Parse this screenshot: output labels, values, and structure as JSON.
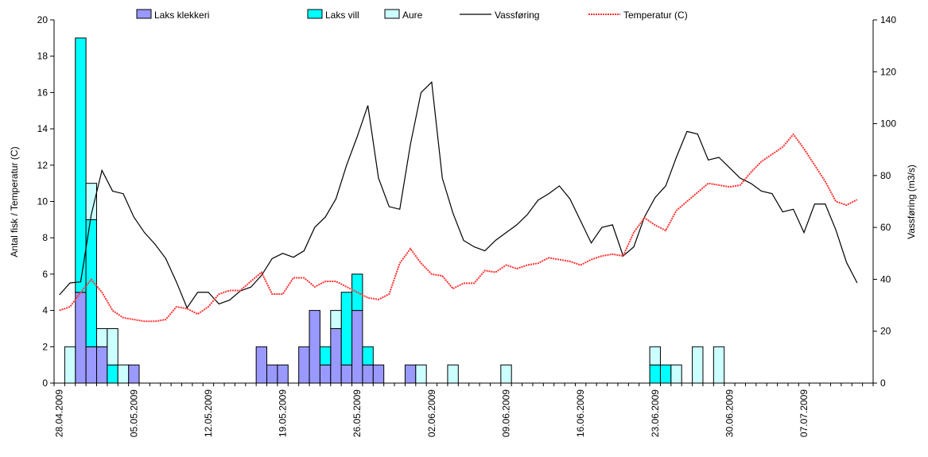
{
  "chart_data": {
    "type": "bar",
    "y_label": "Antal fisk / Temperatur (C)",
    "y2_label": "Vassføring (m3/s)",
    "categories": [
      "28.04.2009",
      null,
      null,
      null,
      null,
      null,
      null,
      "05.05.2009",
      null,
      null,
      null,
      null,
      null,
      null,
      "12.05.2009",
      null,
      null,
      null,
      null,
      null,
      null,
      "19.05.2009",
      null,
      null,
      null,
      null,
      null,
      null,
      "26.05.2009",
      null,
      null,
      null,
      null,
      null,
      null,
      "02.06.2009",
      null,
      null,
      null,
      null,
      null,
      null,
      "09.06.2009",
      null,
      null,
      null,
      null,
      null,
      null,
      "16.06.2009",
      null,
      null,
      null,
      null,
      null,
      null,
      "23.06.2009",
      null,
      null,
      null,
      null,
      null,
      null,
      "30.06.2009",
      null,
      null,
      null,
      null,
      null,
      null,
      "07.07.2009",
      null,
      null,
      null,
      null,
      null,
      null
    ],
    "series": [
      {
        "name": "Laks klekkeri",
        "type": "bar",
        "color": "#9999ff",
        "values": [
          null,
          null,
          5,
          2,
          2,
          null,
          null,
          1,
          null,
          null,
          null,
          null,
          null,
          null,
          null,
          null,
          null,
          null,
          null,
          2,
          1,
          1,
          null,
          2,
          4,
          1,
          3,
          1,
          4,
          1,
          1,
          null,
          null,
          1,
          null,
          null,
          null,
          null,
          null,
          null,
          null,
          null,
          null,
          null,
          null,
          null,
          null,
          null,
          null,
          null,
          null,
          null,
          null,
          null,
          null,
          null,
          null,
          null,
          null,
          null,
          null,
          null,
          null,
          null,
          null,
          null,
          null,
          null,
          null,
          null,
          null,
          null,
          null,
          null,
          null,
          null,
          null
        ]
      },
      {
        "name": "Laks vill",
        "type": "bar",
        "color": "#00ffff",
        "values": [
          null,
          null,
          14,
          7,
          null,
          1,
          null,
          null,
          null,
          null,
          null,
          null,
          null,
          null,
          null,
          null,
          null,
          null,
          null,
          null,
          null,
          null,
          null,
          null,
          null,
          1,
          null,
          4,
          2,
          1,
          null,
          null,
          null,
          null,
          null,
          null,
          null,
          null,
          null,
          null,
          null,
          null,
          null,
          null,
          null,
          null,
          null,
          null,
          null,
          null,
          null,
          null,
          null,
          null,
          null,
          null,
          1,
          1,
          null,
          null,
          null,
          null,
          null,
          null,
          null,
          null,
          null,
          null,
          null,
          null,
          null,
          null,
          null,
          null,
          null,
          null,
          null
        ]
      },
      {
        "name": "Aure",
        "type": "bar",
        "color": "#ccffff",
        "values": [
          null,
          2,
          null,
          2,
          1,
          2,
          1,
          null,
          null,
          null,
          null,
          null,
          null,
          null,
          null,
          null,
          null,
          null,
          null,
          null,
          null,
          null,
          null,
          null,
          null,
          null,
          1,
          null,
          null,
          null,
          null,
          null,
          null,
          null,
          1,
          null,
          null,
          1,
          null,
          null,
          null,
          null,
          1,
          null,
          null,
          null,
          null,
          null,
          null,
          null,
          null,
          null,
          null,
          null,
          null,
          null,
          1,
          null,
          1,
          null,
          2,
          null,
          2,
          null,
          null,
          null,
          null,
          null,
          null,
          null,
          null,
          null,
          null,
          null,
          null,
          null,
          null
        ]
      },
      {
        "name": "Vassføring",
        "type": "line",
        "axis": "y2",
        "color": "#000000",
        "values": [
          34,
          38.6,
          39,
          65,
          82,
          74,
          73,
          64,
          58,
          53.5,
          48,
          39,
          29,
          35,
          35,
          30.5,
          32,
          35.5,
          37,
          41.5,
          48,
          50,
          48.5,
          51,
          60,
          64,
          71,
          84,
          95,
          107,
          79,
          68,
          67,
          92,
          112,
          116,
          79,
          65.5,
          55,
          52.5,
          51,
          55,
          58,
          61,
          65,
          70.5,
          73,
          76,
          71,
          62.5,
          54,
          60,
          61,
          49,
          52.5,
          64,
          71.5,
          76,
          87,
          97,
          96,
          86,
          87,
          83,
          79,
          77,
          74,
          73,
          66,
          67,
          58,
          69,
          69,
          59,
          46.5,
          38.6,
          null
        ]
      },
      {
        "name": "Temperatur (C)",
        "type": "line",
        "color": "#ff3333",
        "dashed": true,
        "values": [
          4.0,
          4.2,
          5.0,
          5.7,
          5.0,
          4.0,
          3.6,
          3.5,
          3.4,
          3.4,
          3.5,
          4.2,
          4.1,
          3.8,
          4.2,
          4.9,
          5.1,
          5.1,
          5.6,
          6.1,
          4.9,
          4.9,
          5.8,
          5.8,
          5.3,
          5.6,
          5.6,
          5.3,
          5.0,
          4.7,
          4.6,
          4.9,
          6.6,
          7.4,
          6.6,
          6.0,
          5.9,
          5.2,
          5.5,
          5.5,
          6.2,
          6.1,
          6.5,
          6.3,
          6.5,
          6.6,
          6.9,
          6.8,
          6.7,
          6.5,
          6.8,
          7.0,
          7.1,
          7.0,
          8.3,
          9.1,
          8.7,
          8.4,
          9.5,
          10.0,
          10.5,
          11.0,
          10.9,
          10.8,
          10.9,
          11.6,
          12.2,
          12.6,
          13.0,
          13.7,
          12.9,
          12.0,
          11.1,
          10.0,
          9.8,
          10.1,
          null
        ]
      }
    ],
    "stacked": true,
    "ylim": [
      0,
      20
    ],
    "yticks": [
      0,
      2,
      4,
      6,
      8,
      10,
      12,
      14,
      16,
      18,
      20
    ],
    "y2lim": [
      0,
      140
    ],
    "y2ticks": [
      0,
      20,
      40,
      60,
      80,
      100,
      120,
      140
    ],
    "legend": "top"
  }
}
